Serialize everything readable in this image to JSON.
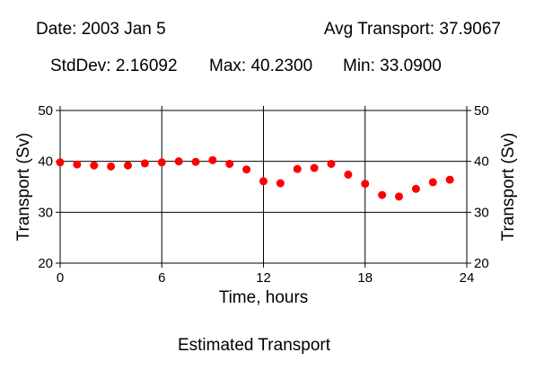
{
  "header": {
    "date": "Date: 2003 Jan 5",
    "avg": "Avg Transport: 37.9067",
    "stddev": "StdDev: 2.16092",
    "max": "Max: 40.2300",
    "min": "Min: 33.0900"
  },
  "caption": "Estimated Transport",
  "chart_data": {
    "type": "scatter",
    "xlabel": "Time, hours",
    "ylabel": "Transport (Sv)",
    "ylabel_right": "Transport (Sv)",
    "xlim": [
      0,
      24
    ],
    "ylim": [
      20,
      50
    ],
    "xticks": [
      0,
      6,
      12,
      18,
      24
    ],
    "yticks": [
      20,
      30,
      40,
      50
    ],
    "grid": true,
    "marker_color": "#ff0000",
    "series": [
      {
        "x": [
          0,
          1,
          2,
          3,
          4,
          5,
          6,
          7,
          8,
          9,
          10,
          11,
          12,
          13,
          14,
          15,
          16,
          17,
          18,
          19,
          20,
          21,
          22,
          23
        ],
        "y": [
          39.8,
          39.4,
          39.2,
          39.0,
          39.2,
          39.6,
          39.8,
          40.0,
          39.9,
          40.23,
          39.5,
          38.4,
          36.1,
          35.7,
          38.5,
          38.7,
          39.5,
          37.4,
          35.6,
          33.4,
          33.09,
          34.6,
          35.9,
          36.4
        ]
      }
    ]
  }
}
